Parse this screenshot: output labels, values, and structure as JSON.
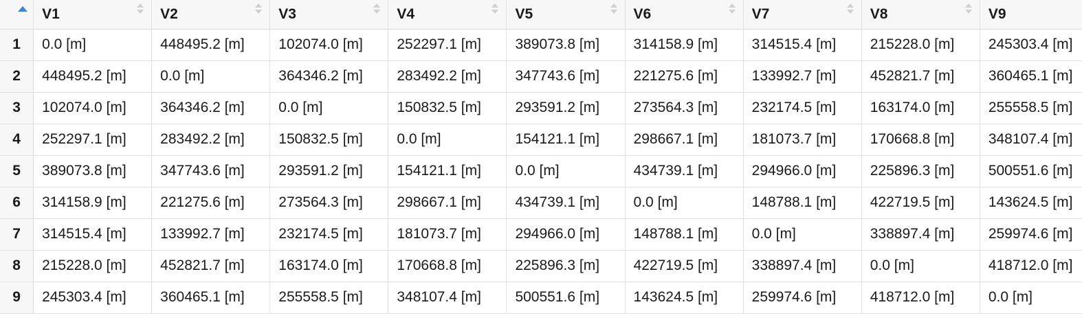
{
  "table": {
    "sort_indicator": "sort-ascending-icon",
    "columns": [
      "V1",
      "V2",
      "V3",
      "V4",
      "V5",
      "V6",
      "V7",
      "V8",
      "V9"
    ],
    "rows": [
      {
        "index": "1",
        "cells": [
          "0.0 [m]",
          "448495.2 [m]",
          "102074.0 [m]",
          "252297.1 [m]",
          "389073.8 [m]",
          "314158.9 [m]",
          "314515.4 [m]",
          "215228.0 [m]",
          "245303.4 [m]"
        ]
      },
      {
        "index": "2",
        "cells": [
          "448495.2 [m]",
          "0.0 [m]",
          "364346.2 [m]",
          "283492.2 [m]",
          "347743.6 [m]",
          "221275.6 [m]",
          "133992.7 [m]",
          "452821.7 [m]",
          "360465.1 [m]"
        ]
      },
      {
        "index": "3",
        "cells": [
          "102074.0 [m]",
          "364346.2 [m]",
          "0.0 [m]",
          "150832.5 [m]",
          "293591.2 [m]",
          "273564.3 [m]",
          "232174.5 [m]",
          "163174.0 [m]",
          "255558.5 [m]"
        ]
      },
      {
        "index": "4",
        "cells": [
          "252297.1 [m]",
          "283492.2 [m]",
          "150832.5 [m]",
          "0.0 [m]",
          "154121.1 [m]",
          "298667.1 [m]",
          "181073.7 [m]",
          "170668.8 [m]",
          "348107.4 [m]"
        ]
      },
      {
        "index": "5",
        "cells": [
          "389073.8 [m]",
          "347743.6 [m]",
          "293591.2 [m]",
          "154121.1 [m]",
          "0.0 [m]",
          "434739.1 [m]",
          "294966.0 [m]",
          "225896.3 [m]",
          "500551.6 [m]"
        ]
      },
      {
        "index": "6",
        "cells": [
          "314158.9 [m]",
          "221275.6 [m]",
          "273564.3 [m]",
          "298667.1 [m]",
          "434739.1 [m]",
          "0.0 [m]",
          "148788.1 [m]",
          "422719.5 [m]",
          "143624.5 [m]"
        ]
      },
      {
        "index": "7",
        "cells": [
          "314515.4 [m]",
          "133992.7 [m]",
          "232174.5 [m]",
          "181073.7 [m]",
          "294966.0 [m]",
          "148788.1 [m]",
          "0.0 [m]",
          "338897.4 [m]",
          "259974.6 [m]"
        ]
      },
      {
        "index": "8",
        "cells": [
          "215228.0 [m]",
          "452821.7 [m]",
          "163174.0 [m]",
          "170668.8 [m]",
          "225896.3 [m]",
          "422719.5 [m]",
          "338897.4 [m]",
          "0.0 [m]",
          "418712.0 [m]"
        ]
      },
      {
        "index": "9",
        "cells": [
          "245303.4 [m]",
          "360465.1 [m]",
          "255558.5 [m]",
          "348107.4 [m]",
          "500551.6 [m]",
          "143624.5 [m]",
          "259974.6 [m]",
          "418712.0 [m]",
          "0.0 [m]"
        ]
      }
    ]
  }
}
